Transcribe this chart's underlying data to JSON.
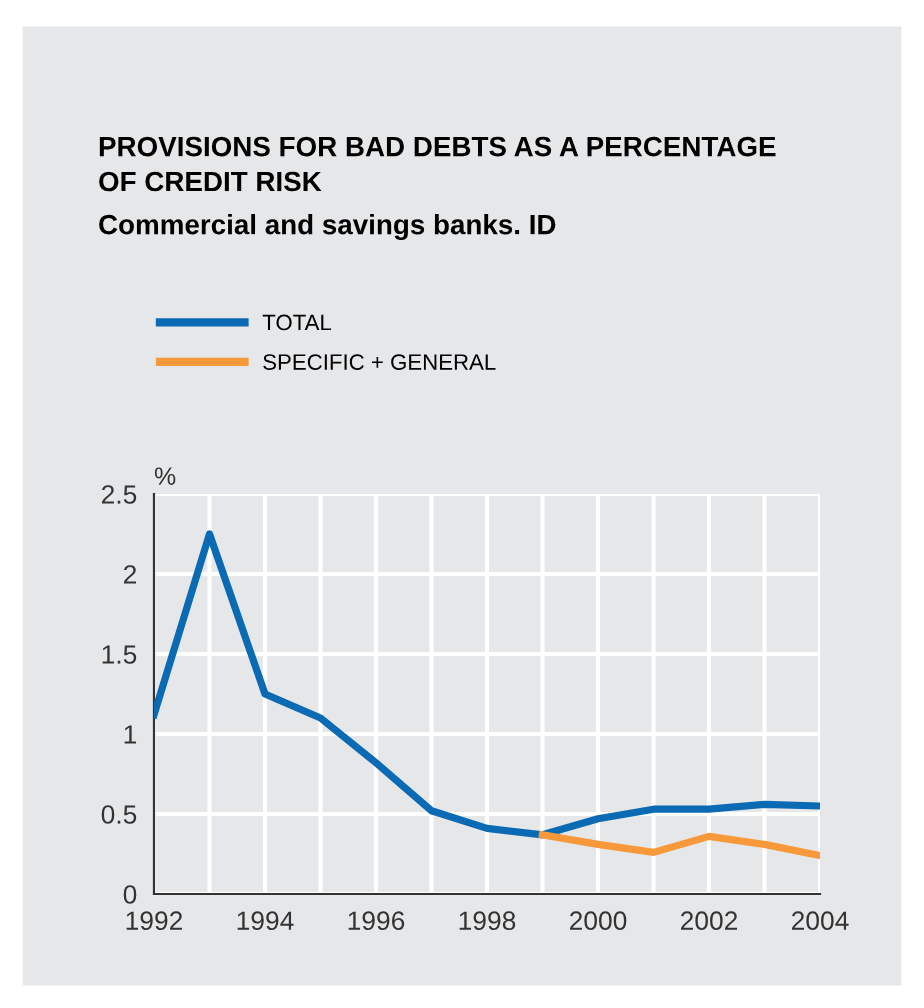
{
  "chart_data": {
    "type": "line",
    "title": "PROVISIONS FOR BAD DEBTS AS A PERCENTAGE\nOF CREDIT RISK",
    "subtitle": "Commercial and savings banks. ID",
    "ylabel": "%",
    "x": [
      1992,
      1993,
      1994,
      1995,
      1996,
      1997,
      1998,
      1999,
      2000,
      2001,
      2002,
      2003,
      2004
    ],
    "series": [
      {
        "name": "TOTAL",
        "color": "#0a6ab4",
        "values": [
          1.12,
          2.25,
          1.25,
          1.1,
          0.82,
          0.52,
          0.41,
          0.37,
          0.47,
          0.53,
          0.53,
          0.56,
          0.55
        ]
      },
      {
        "name": "SPECIFIC + GENERAL",
        "color": "#f7993a",
        "values": [
          null,
          null,
          null,
          null,
          null,
          null,
          null,
          0.37,
          0.31,
          0.26,
          0.36,
          0.31,
          0.24
        ]
      }
    ],
    "xlim": [
      1992,
      2004
    ],
    "xticks": [
      1992,
      {
        "value": 1993,
        "label": null
      },
      1994,
      {
        "value": 1995,
        "label": null
      },
      1996,
      {
        "value": 1997,
        "label": null
      },
      1998,
      {
        "value": 1999,
        "label": null
      },
      2000,
      {
        "value": 2001,
        "label": null
      },
      2002,
      {
        "value": 2003,
        "label": null
      },
      2004
    ],
    "ylim": [
      0,
      2.5
    ],
    "yticks": [
      0,
      0.5,
      1,
      1.5,
      2,
      2.5
    ],
    "grid": true,
    "legend": "top left",
    "line_style": "solid",
    "marker": "none"
  }
}
